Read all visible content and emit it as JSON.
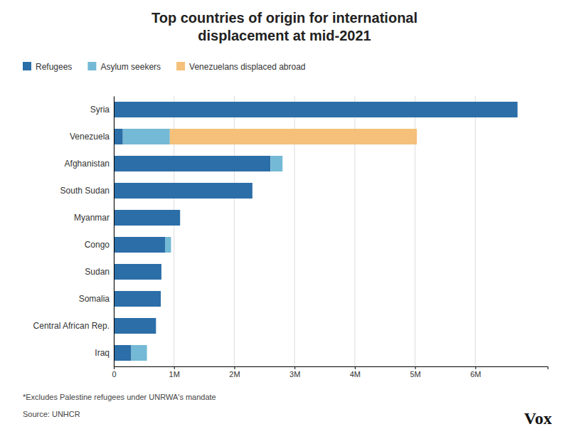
{
  "chart_data": {
    "type": "bar",
    "orientation": "horizontal",
    "stacked": true,
    "title": "Top countries of origin for international\ndisplacement at mid-2021",
    "categories": [
      "Syria",
      "Venezuela",
      "Afghanistan",
      "South Sudan",
      "Myanmar",
      "Congo",
      "Sudan",
      "Somalia",
      "Central African Rep.",
      "Iraq"
    ],
    "series": [
      {
        "name": "Refugees",
        "color": "#2b6ea8",
        "values": [
          6700000,
          150000,
          2600000,
          2300000,
          1100000,
          850000,
          790000,
          780000,
          700000,
          290000
        ]
      },
      {
        "name": "Asylum seekers",
        "color": "#74b9d5",
        "values": [
          0,
          780000,
          200000,
          0,
          0,
          100000,
          0,
          0,
          0,
          260000
        ]
      },
      {
        "name": "Venezuelans displaced abroad",
        "color": "#f4c07a",
        "values": [
          0,
          4100000,
          0,
          0,
          0,
          0,
          0,
          0,
          0,
          0
        ]
      }
    ],
    "xlim": [
      0,
      7200000
    ],
    "xticks": [
      0,
      {
        "value": 1000000,
        "label": "1M"
      },
      {
        "value": 2000000,
        "label": "2M"
      },
      {
        "value": 3000000,
        "label": "3M"
      },
      {
        "value": 4000000,
        "label": "4M"
      },
      {
        "value": 5000000,
        "label": "5M"
      },
      {
        "value": 6000000,
        "label": "6M"
      }
    ],
    "grid": true,
    "legend": "upper left",
    "annotations": [
      "*Excludes Palestine refugees under UNRWA's mandate",
      "Source: UNHCR",
      "Vox"
    ]
  }
}
